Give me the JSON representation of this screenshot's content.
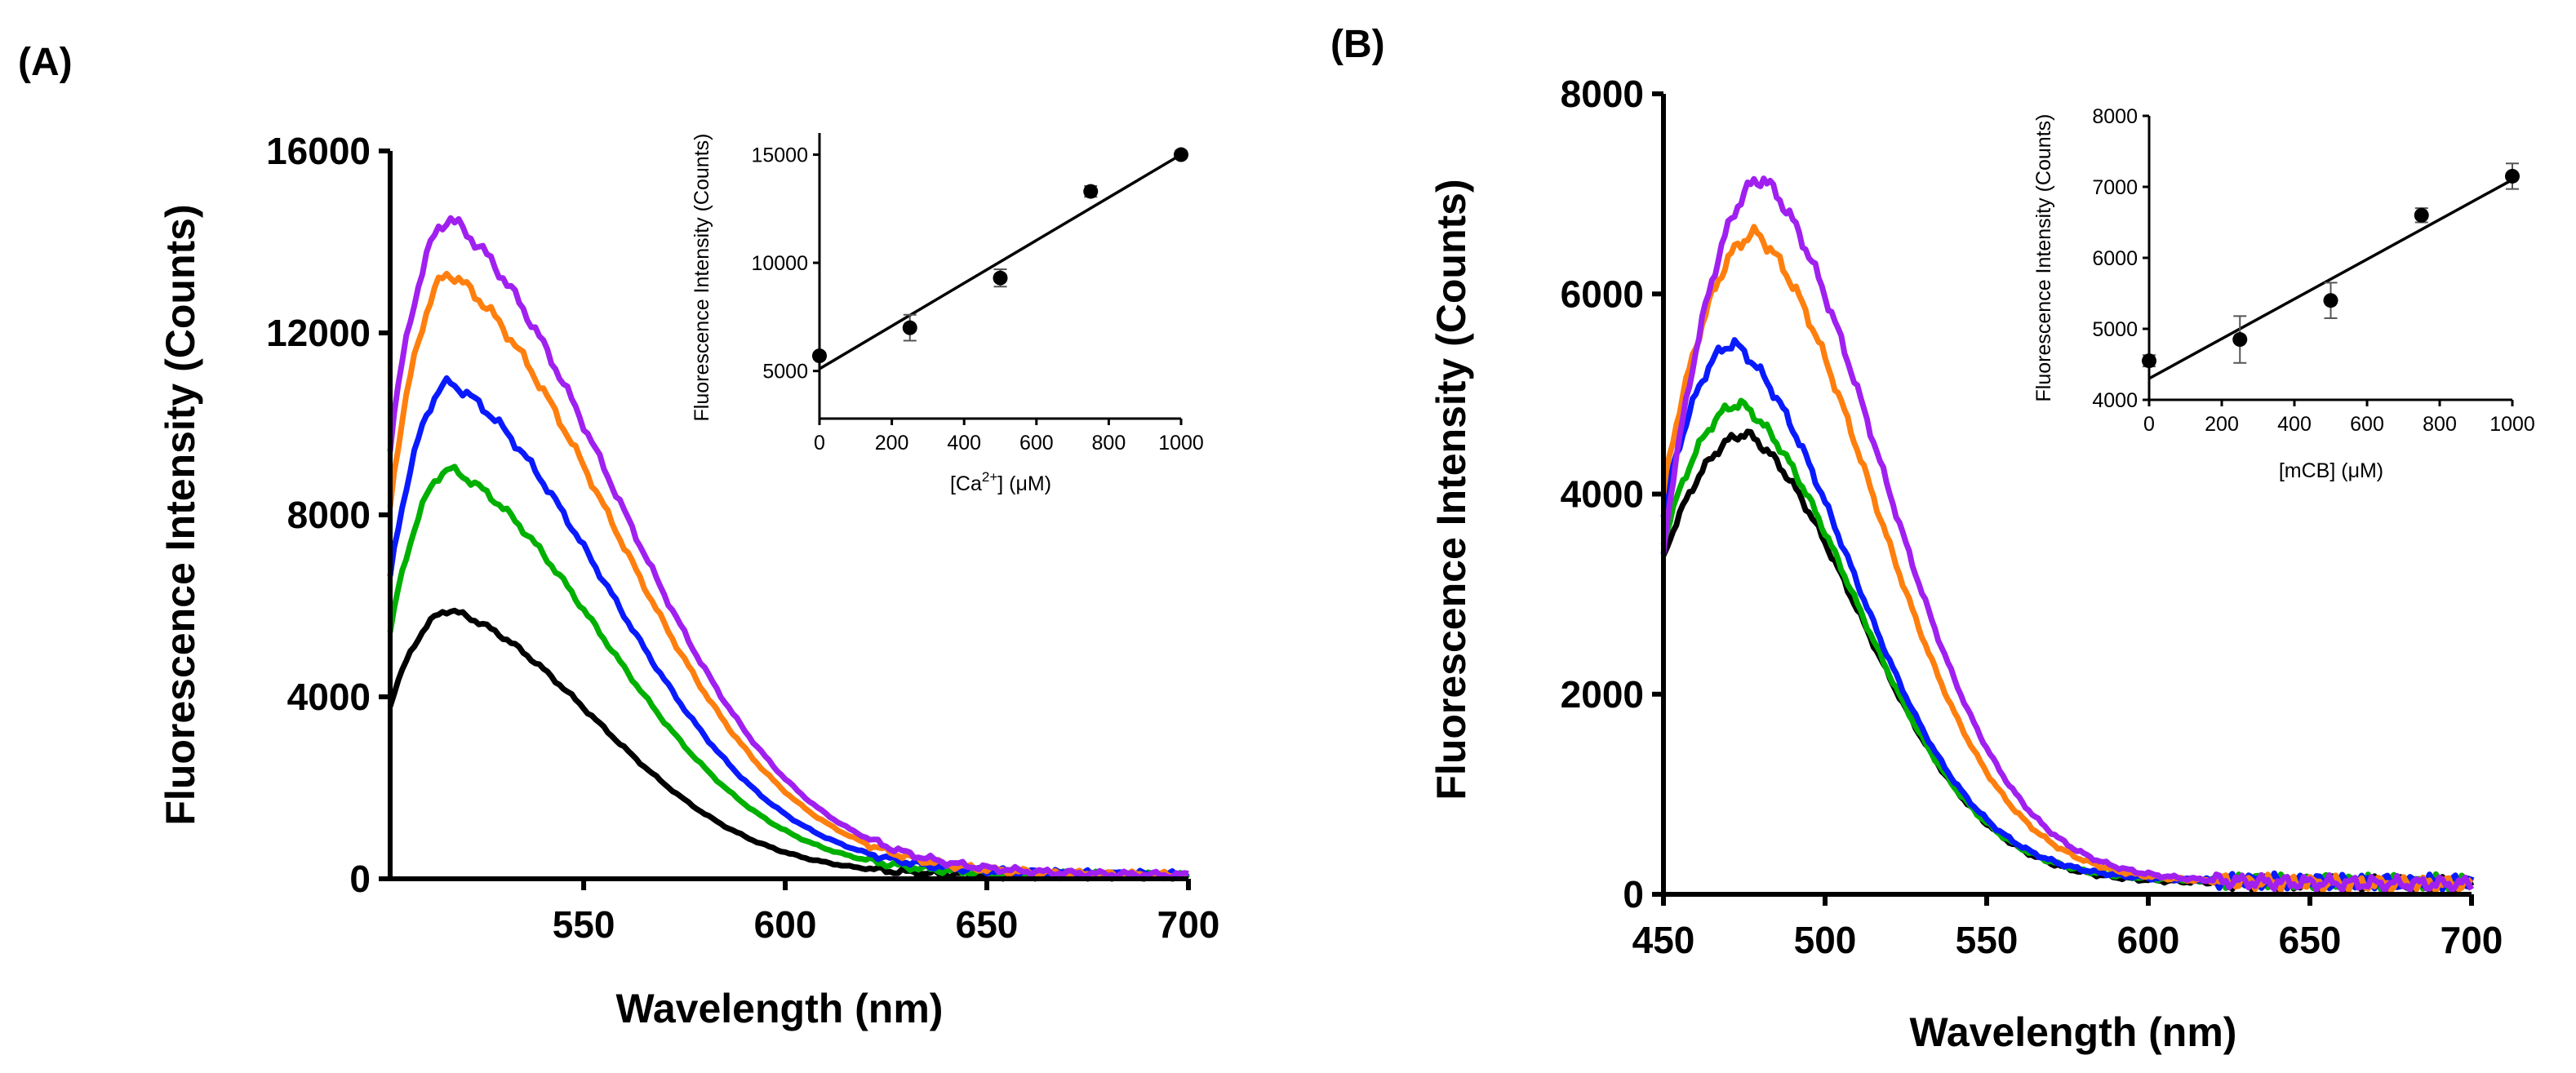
{
  "chart_data": [
    {
      "panel_label": "(A)",
      "type": "line",
      "xlabel": "Wavelength (nm)",
      "ylabel": "Fluorescence Intensity (Counts)",
      "xlim": [
        502,
        700
      ],
      "ylim": [
        0,
        16000
      ],
      "x_ticks": [
        550,
        600,
        650,
        700
      ],
      "y_ticks": [
        0,
        4000,
        8000,
        12000,
        16000
      ],
      "series_colors": [
        "#000000",
        "#00b000",
        "#0a1aff",
        "#ff7f0e",
        "#a020f0"
      ],
      "peak_x": 517,
      "series": [
        {
          "name": "black",
          "start": 3800,
          "peak": 5900,
          "end": 40
        },
        {
          "name": "green",
          "start": 5400,
          "peak": 9000,
          "end": 60
        },
        {
          "name": "blue",
          "start": 6600,
          "peak": 10900,
          "end": 80
        },
        {
          "name": "orange",
          "start": 8200,
          "peak": 13300,
          "end": 60
        },
        {
          "name": "purple",
          "start": 9500,
          "peak": 14500,
          "end": 60
        }
      ],
      "inset": {
        "type": "scatter",
        "xlabel_main": "[Ca",
        "xlabel_sup": "2+",
        "xlabel_end": "] (μM)",
        "ylabel": "Fluorescence Intensity (Counts)",
        "xlim": [
          0,
          1000
        ],
        "ylim": [
          2800,
          16000
        ],
        "x_ticks": [
          0,
          200,
          400,
          600,
          800,
          1000
        ],
        "y_ticks": [
          5000,
          10000,
          15000
        ],
        "x": [
          0,
          250,
          500,
          750,
          1000
        ],
        "y": [
          5700,
          7000,
          9300,
          13300,
          15000
        ],
        "err": [
          150,
          600,
          400,
          250,
          150
        ],
        "fit": {
          "x": [
            0,
            1000
          ],
          "y": [
            5100,
            15000
          ]
        }
      }
    },
    {
      "panel_label": "(B)",
      "type": "line",
      "xlabel": "Wavelength (nm)",
      "ylabel": "Fluorescence Intensity (Counts)",
      "xlim": [
        450,
        700
      ],
      "ylim": [
        0,
        8000
      ],
      "x_ticks": [
        450,
        500,
        550,
        600,
        650,
        700
      ],
      "y_ticks": [
        0,
        2000,
        4000,
        6000,
        8000
      ],
      "series_colors": [
        "#000000",
        "#00b000",
        "#0a1aff",
        "#ff7f0e",
        "#a020f0"
      ],
      "series": [
        {
          "name": "black",
          "start": 3350,
          "peak": 4600,
          "peak_x": 476,
          "end": 100
        },
        {
          "name": "green",
          "start": 3500,
          "peak": 4900,
          "peak_x": 474,
          "end": 120
        },
        {
          "name": "blue",
          "start": 3800,
          "peak": 5500,
          "peak_x": 472,
          "end": 120
        },
        {
          "name": "orange",
          "start": 4000,
          "peak": 6600,
          "peak_x": 479,
          "end": 100
        },
        {
          "name": "purple",
          "start": 3400,
          "peak": 7150,
          "peak_x": 481,
          "end": 100
        }
      ],
      "inset": {
        "type": "scatter",
        "xlabel_main": "[mCB] (μM)",
        "xlabel_sup": "",
        "xlabel_end": "",
        "ylabel": "Fluorescence Intensity (Counts)",
        "xlim": [
          0,
          1000
        ],
        "ylim": [
          4000,
          8000
        ],
        "x_ticks": [
          0,
          200,
          400,
          600,
          800,
          1000
        ],
        "y_ticks": [
          4000,
          5000,
          6000,
          7000,
          8000
        ],
        "x": [
          0,
          250,
          500,
          750,
          1000
        ],
        "y": [
          4550,
          4850,
          5400,
          6600,
          7150
        ],
        "err": [
          80,
          330,
          250,
          100,
          180
        ],
        "fit": {
          "x": [
            0,
            1000
          ],
          "y": [
            4300,
            7100
          ]
        }
      }
    }
  ]
}
